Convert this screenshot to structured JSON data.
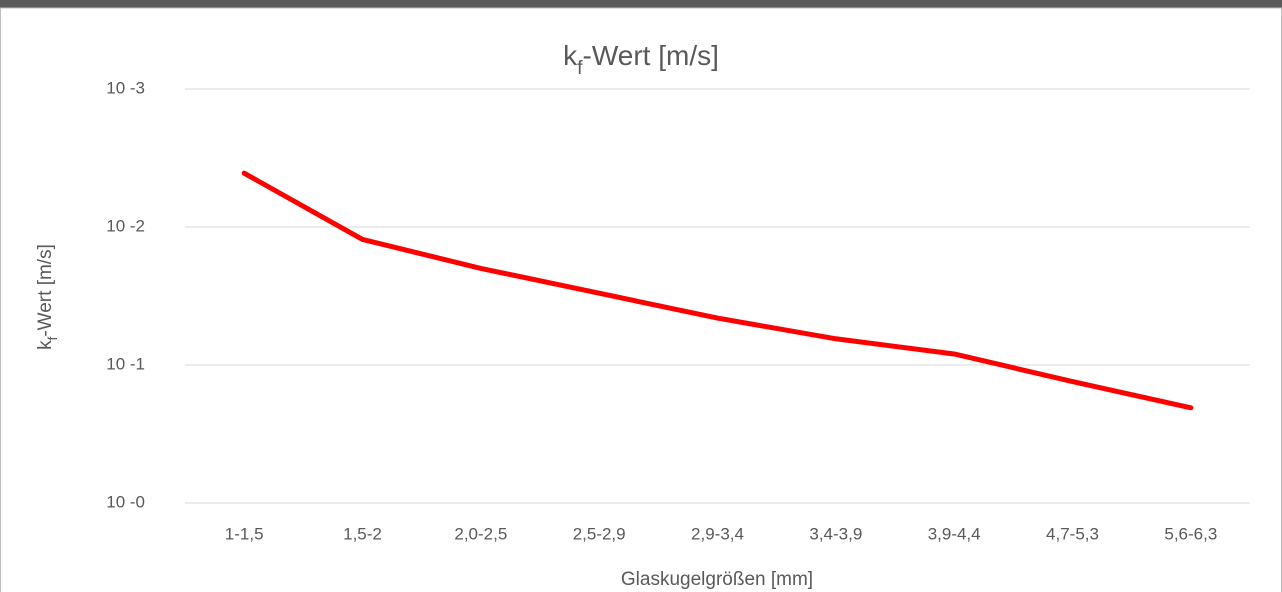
{
  "chart_data": {
    "type": "line",
    "title": "kf-Wert [m/s]",
    "x_label": "Glaskugelgrößen [mm]",
    "y_label": "kf-Wert [m/s]",
    "categories": [
      "1-1,5",
      "1,5-2",
      "2,0-2,5",
      "2,5-2,9",
      "2,9-3,4",
      "3,4-3,9",
      "3,9-4,4",
      "4,7-5,3",
      "5,6-6,3"
    ],
    "series": [
      {
        "name": "kf-Wert [m/s]",
        "color": "#ff0000",
        "values": [
          2.39,
          1.91,
          1.7,
          1.52,
          1.34,
          1.19,
          1.08,
          0.88,
          0.69
        ]
      }
    ],
    "ylim": [
      0,
      3
    ],
    "yticks": [
      {
        "value": 3,
        "label": "10 -3"
      },
      {
        "value": 2,
        "label": "10 -2"
      },
      {
        "value": 1,
        "label": "10 -1"
      },
      {
        "value": 0,
        "label": "10 -0"
      }
    ],
    "grid": true
  }
}
